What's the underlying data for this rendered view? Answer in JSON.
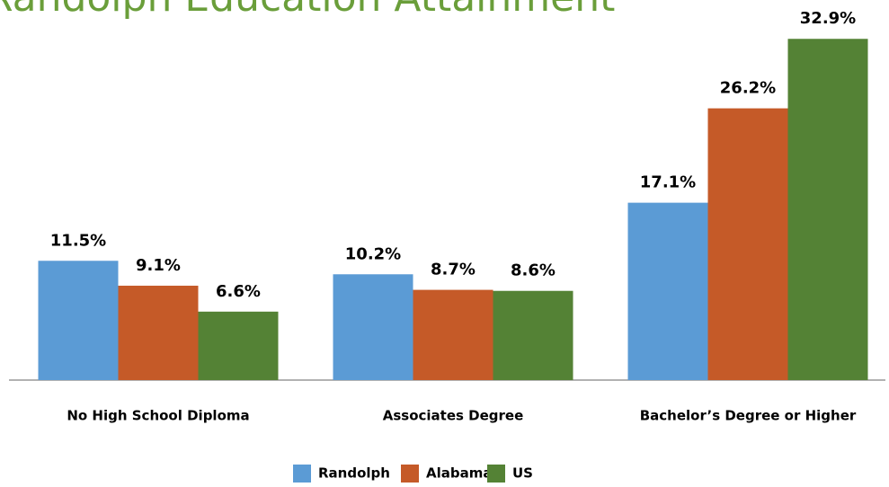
{
  "chart_data": {
    "type": "bar",
    "title": "Randolph Education Attainment",
    "categories": [
      "No High School Diploma",
      "Associates Degree",
      "Bachelor’s Degree or Higher"
    ],
    "series": [
      {
        "name": "Randolph",
        "color": "#5b9bd5",
        "values": [
          11.5,
          10.2,
          17.1
        ],
        "value_labels": [
          "11.5%",
          "10.2%",
          "17.1%"
        ]
      },
      {
        "name": "Alabama",
        "color": "#c55a28",
        "values": [
          9.1,
          8.7,
          26.2
        ],
        "value_labels": [
          "9.1%",
          "8.7%",
          "26.2%"
        ]
      },
      {
        "name": "US",
        "color": "#548235",
        "values": [
          6.6,
          8.6,
          32.9
        ],
        "value_labels": [
          "6.6%",
          "8.6%",
          "32.9%"
        ]
      }
    ],
    "ylim": [
      0,
      35
    ],
    "legend": "bottom"
  }
}
